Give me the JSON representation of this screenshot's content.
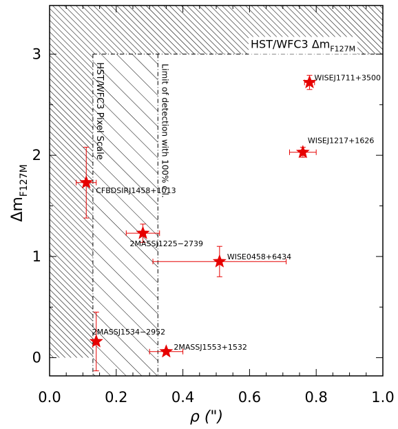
{
  "chart_data": {
    "type": "scatter",
    "title": "",
    "xlabel": "ρ (\")",
    "ylabel": "Δm",
    "ylabel_sub": "F127M",
    "xlim": [
      0.0,
      1.0
    ],
    "ylim": [
      -0.18,
      3.48
    ],
    "x_ticks": [
      "0.0",
      "0.2",
      "0.4",
      "0.6",
      "0.8",
      "1.0"
    ],
    "y_ticks": [
      "0",
      "1",
      "2",
      "3"
    ],
    "grid": false,
    "regions": {
      "hst_limit": {
        "label": "HST/WFC3  Δm",
        "sub": "F127M",
        "y": 3.0
      },
      "pixel_scale": {
        "label": "HST/WFC3 Pixel Scale",
        "x": 0.13
      },
      "detection_limit": {
        "label": "Limit of detection with 100% c.l.",
        "x": 0.325
      }
    },
    "color": "#e60000",
    "points": [
      {
        "name": "CFBDSIRJ1458+1013",
        "x": 0.11,
        "y": 1.73,
        "xerr": 0.03,
        "yerr": 0.35
      },
      {
        "name": "2MASSJ1225−2739",
        "x": 0.28,
        "y": 1.23,
        "xerr": 0.05,
        "yerr": 0.09
      },
      {
        "name": "WISE0458+6434",
        "x": 0.51,
        "y": 0.95,
        "xerr": 0.2,
        "yerr": 0.15
      },
      {
        "name": "2MASSJ1534−2952",
        "x": 0.14,
        "y": 0.16,
        "xerr": 0.0,
        "yerr": 0.29
      },
      {
        "name": "2MASSJ1553+1532",
        "x": 0.35,
        "y": 0.06,
        "xerr": 0.05,
        "yerr": 0.02
      },
      {
        "name": "WISEJ1711+3500",
        "x": 0.78,
        "y": 2.72,
        "xerr": 0.015,
        "yerr": 0.07
      },
      {
        "name": "WISEJ1217+1626",
        "x": 0.76,
        "y": 2.03,
        "xerr": 0.04,
        "yerr": 0.05
      }
    ]
  }
}
